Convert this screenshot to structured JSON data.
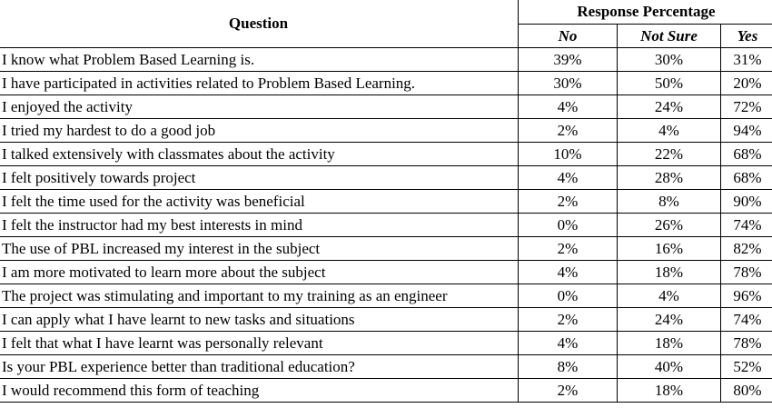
{
  "table": {
    "header_question": "Question",
    "header_group": "Response Percentage",
    "sub_headers": [
      "No",
      "Not Sure",
      "Yes"
    ],
    "rows": [
      {
        "question": "I know what Problem Based Learning is.",
        "no": "39%",
        "not_sure": "30%",
        "yes": "31%"
      },
      {
        "question": "I have participated in activities related to Problem Based Learning.",
        "no": "30%",
        "not_sure": "50%",
        "yes": "20%"
      },
      {
        "question": "I enjoyed the activity",
        "no": "4%",
        "not_sure": "24%",
        "yes": "72%"
      },
      {
        "question": "I tried my hardest to do a good job",
        "no": "2%",
        "not_sure": "4%",
        "yes": "94%"
      },
      {
        "question": "I talked extensively with classmates about the activity",
        "no": "10%",
        "not_sure": "22%",
        "yes": "68%"
      },
      {
        "question": "I felt positively towards project",
        "no": "4%",
        "not_sure": "28%",
        "yes": "68%"
      },
      {
        "question": "I felt the time used for the activity was beneficial",
        "no": "2%",
        "not_sure": "8%",
        "yes": "90%"
      },
      {
        "question": "I felt the instructor had my best interests in mind",
        "no": "0%",
        "not_sure": "26%",
        "yes": "74%"
      },
      {
        "question": "The use of PBL increased my interest in the subject",
        "no": "2%",
        "not_sure": "16%",
        "yes": "82%"
      },
      {
        "question": "I am more motivated to learn more about the subject",
        "no": "4%",
        "not_sure": "18%",
        "yes": "78%"
      },
      {
        "question": "The project was stimulating and important to my training as an engineer",
        "no": "0%",
        "not_sure": "4%",
        "yes": "96%"
      },
      {
        "question": "I can apply what I have learnt to new tasks and situations",
        "no": "2%",
        "not_sure": "24%",
        "yes": "74%"
      },
      {
        "question": "I felt that what I have learnt was personally relevant",
        "no": "4%",
        "not_sure": "18%",
        "yes": "78%"
      },
      {
        "question": "Is your PBL experience better than traditional education?",
        "no": "8%",
        "not_sure": "40%",
        "yes": "52%"
      },
      {
        "question": "I would recommend this form of teaching",
        "no": "2%",
        "not_sure": "18%",
        "yes": "80%"
      }
    ]
  }
}
